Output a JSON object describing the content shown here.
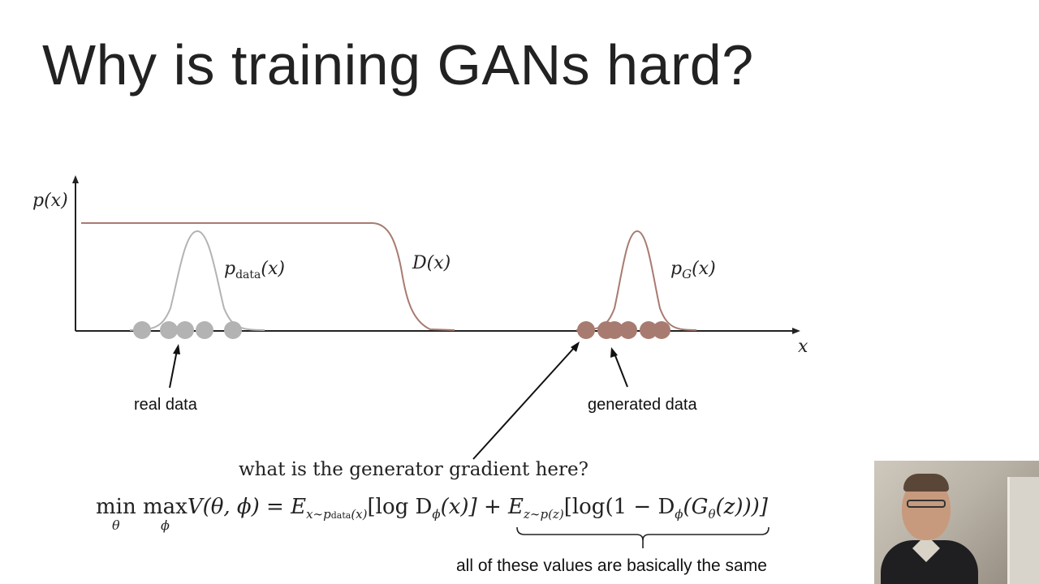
{
  "slide": {
    "title": "Why is training GANs hard?"
  },
  "diagram": {
    "y_axis_label": "p(x)",
    "x_axis_label": "x",
    "p_data_label": {
      "base": "p",
      "sub": "data",
      "arg": "(x)"
    },
    "d_label": "D(x)",
    "p_g_label": {
      "base": "p",
      "sub": "G",
      "arg": "(x)"
    },
    "real_data_label": "real data",
    "generated_data_label": "generated data",
    "colors": {
      "real": "#b3b3b3",
      "generated": "#a87b71",
      "discriminator": "#a87b71",
      "axis": "#222222"
    }
  },
  "question": "what is the generator gradient here?",
  "formula": {
    "min": "min",
    "min_sub": "θ",
    "max": "max",
    "max_sub": "ϕ",
    "lhs": "V(θ, ϕ) = ",
    "e1": "E",
    "e1_sub": "x∼p",
    "e1_sub2": "data",
    "e1_sub3": "(x)",
    "term1": "[log D",
    "term1_sub": "ϕ",
    "term1_end": "(x)] + ",
    "e2": "E",
    "e2_sub": "z∼p(z)",
    "term2": "[log(1 − D",
    "term2_sub": "ϕ",
    "term2_mid": "(G",
    "term2_sub2": "θ",
    "term2_end": "(z)))]"
  },
  "footnote": "all of these values are basically the same"
}
